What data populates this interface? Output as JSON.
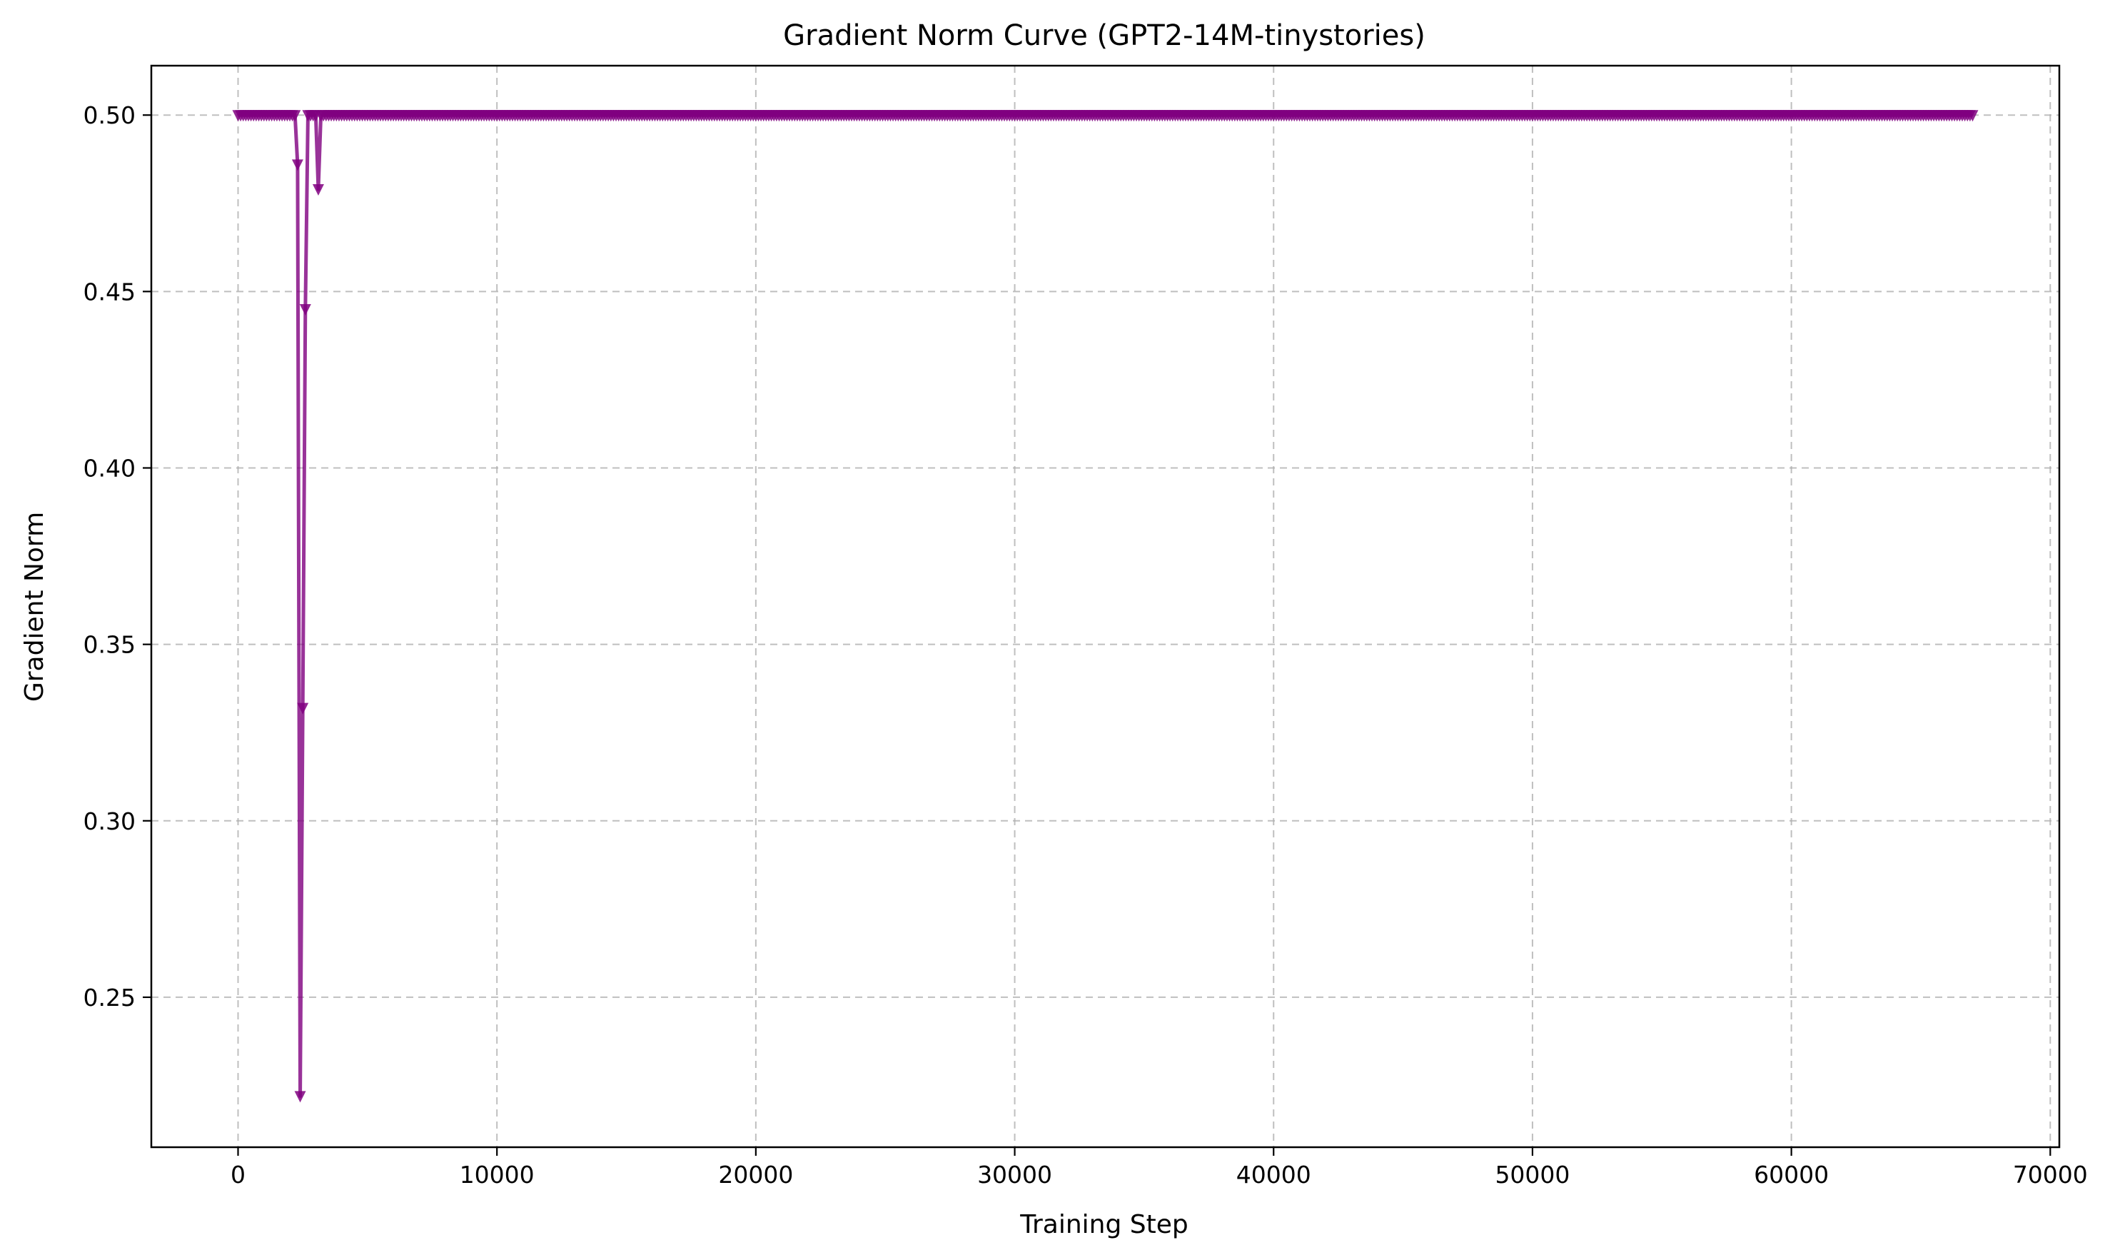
{
  "chart_data": {
    "type": "line",
    "title": "Gradient Norm Curve (GPT2-14M-tinystories)",
    "xlabel": "Training Step",
    "ylabel": "Gradient Norm",
    "xlim": [
      -3350,
      70350
    ],
    "ylim": [
      0.2075,
      0.514
    ],
    "x_ticks": [
      0,
      10000,
      20000,
      30000,
      40000,
      50000,
      60000,
      70000
    ],
    "x_tick_labels": [
      "0",
      "10000",
      "20000",
      "30000",
      "40000",
      "50000",
      "60000",
      "70000"
    ],
    "y_ticks": [
      0.25,
      0.3,
      0.35,
      0.4,
      0.45,
      0.5
    ],
    "y_tick_labels": [
      "0.25",
      "0.30",
      "0.35",
      "0.40",
      "0.45",
      "0.50"
    ],
    "grid": true,
    "marker": "triangle-down",
    "color": "#800080",
    "series": [
      {
        "x_start": 0,
        "x_step": 100,
        "x_end": 67000,
        "baseline_value": 0.5,
        "deviations": [
          {
            "x": 2300,
            "y": 0.486
          },
          {
            "x": 2400,
            "y": 0.222
          },
          {
            "x": 2500,
            "y": 0.332
          },
          {
            "x": 2600,
            "y": 0.445
          },
          {
            "x": 3100,
            "y": 0.479
          }
        ]
      }
    ]
  }
}
